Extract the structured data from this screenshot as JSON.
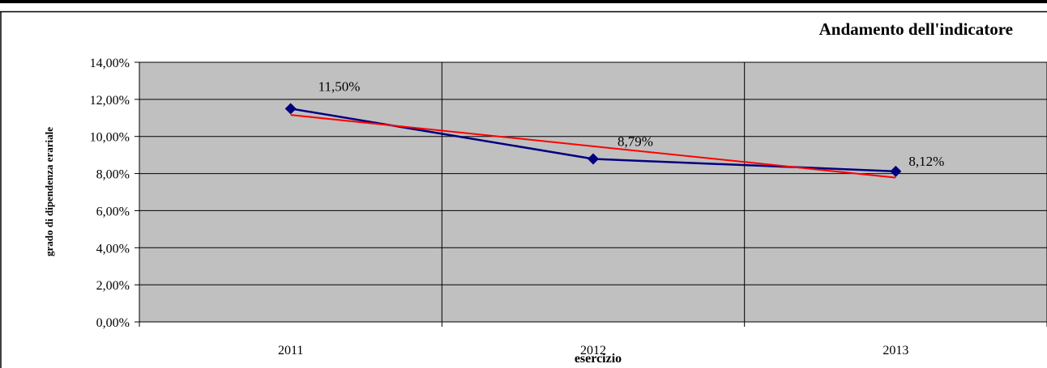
{
  "chart_data": {
    "type": "line",
    "title": "Andamento dell'indicatore",
    "xlabel": "esercizio",
    "ylabel": "grado di dipendenza erariale",
    "categories": [
      "2011",
      "2012",
      "2013"
    ],
    "ylim": [
      0,
      14
    ],
    "yticks": [
      "0,00%",
      "2,00%",
      "4,00%",
      "6,00%",
      "8,00%",
      "10,00%",
      "12,00%",
      "14,00%"
    ],
    "series": [
      {
        "values": [
          11.5,
          8.79,
          8.12
        ],
        "labels": [
          "11,50%",
          "8,79%",
          "8,12%"
        ],
        "color": "#000080",
        "marker": "diamond"
      },
      {
        "trendline": true,
        "values": [
          11.16,
          9.47,
          7.78
        ],
        "color": "#ff0000"
      }
    ],
    "grid": true,
    "plot_background": "#c0c0c0"
  }
}
